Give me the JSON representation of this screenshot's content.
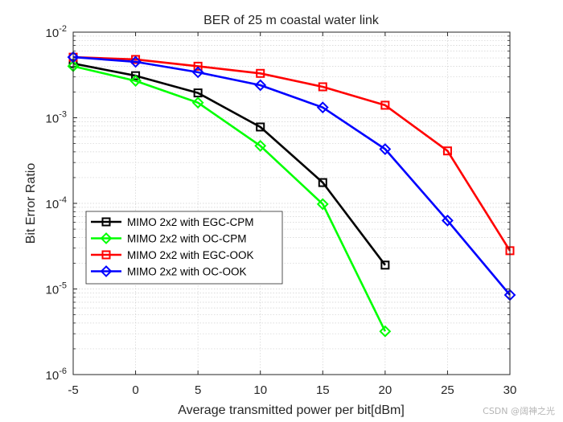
{
  "chart_data": {
    "type": "line",
    "title": "BER of 25 m coastal water link",
    "xlabel": "Average transmitted power per bit[dBm]",
    "ylabel": "Bit Error Ratio",
    "xlim": [
      -5,
      30
    ],
    "ylim": [
      1e-06,
      0.01
    ],
    "yscale": "log",
    "grid": true,
    "legend_position": "lower-left",
    "xticks": [
      -5,
      0,
      5,
      10,
      15,
      20,
      25,
      30
    ],
    "xtick_labels": [
      "-5",
      "0",
      "5",
      "10",
      "15",
      "20",
      "25",
      "30"
    ],
    "yticks": [
      {
        "base": "10",
        "exp": "-6",
        "value": 1e-06
      },
      {
        "base": "10",
        "exp": "-5",
        "value": 1e-05
      },
      {
        "base": "10",
        "exp": "-4",
        "value": 0.0001
      },
      {
        "base": "10",
        "exp": "-3",
        "value": 0.001
      },
      {
        "base": "10",
        "exp": "-2",
        "value": 0.01
      }
    ],
    "series": [
      {
        "name": "MIMO 2x2 with EGC-CPM",
        "color": "#000000",
        "marker": "square",
        "x": [
          -5,
          0,
          5,
          10,
          15,
          20
        ],
        "values": [
          0.0043,
          0.0031,
          0.00195,
          0.00078,
          0.000175,
          1.9e-05
        ]
      },
      {
        "name": "MIMO 2x2 with OC-CPM",
        "color": "#00ff00",
        "marker": "diamond",
        "x": [
          -5,
          0,
          5,
          10,
          15,
          20
        ],
        "values": [
          0.004,
          0.0027,
          0.0015,
          0.00047,
          9.8e-05,
          3.2e-06
        ]
      },
      {
        "name": "MIMO 2x2 with EGC-OOK",
        "color": "#ff0000",
        "marker": "square",
        "x": [
          -5,
          0,
          5,
          10,
          15,
          20,
          25,
          30
        ],
        "values": [
          0.0051,
          0.0048,
          0.004,
          0.0033,
          0.0023,
          0.0014,
          0.00041,
          2.8e-05
        ]
      },
      {
        "name": "MIMO 2x2 with OC-OOK",
        "color": "#0000ff",
        "marker": "diamond",
        "x": [
          -5,
          0,
          5,
          10,
          15,
          20,
          25,
          30
        ],
        "values": [
          0.0051,
          0.0045,
          0.0034,
          0.0024,
          0.00132,
          0.00043,
          6.3e-05,
          8.5e-06
        ]
      }
    ]
  },
  "watermark": "CSDN @阔神之光"
}
